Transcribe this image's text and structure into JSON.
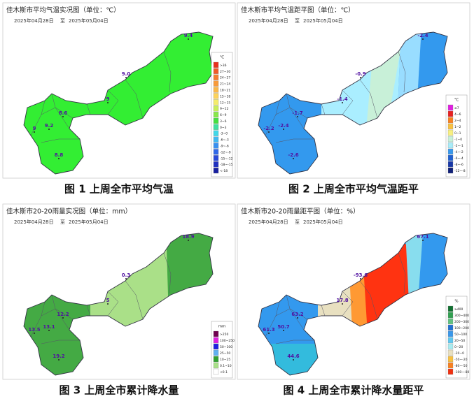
{
  "panels": [
    {
      "title": "佳木斯市平均气温实况图（单位：℃）",
      "date_from": "2025年04月28日",
      "date_sep": "至",
      "date_to": "2025年05月04日",
      "legend_title": "℃",
      "legend": [
        {
          "label": ">36",
          "color": "#e8301c"
        },
        {
          "label": "27~30",
          "color": "#f05a28"
        },
        {
          "label": "24~27",
          "color": "#f47c30"
        },
        {
          "label": "21~24",
          "color": "#f89a3a"
        },
        {
          "label": "18~21",
          "color": "#fbb848"
        },
        {
          "label": "15~18",
          "color": "#fdd35a"
        },
        {
          "label": "12~15",
          "color": "#f4ec6a"
        },
        {
          "label": "9~12",
          "color": "#c8ee5a"
        },
        {
          "label": "6~9",
          "color": "#88e84a"
        },
        {
          "label": "3~6",
          "color": "#44e040"
        },
        {
          "label": "0~3",
          "color": "#40e0a0"
        },
        {
          "label": "-3~0",
          "color": "#40d8e8"
        },
        {
          "label": "-6~-3",
          "color": "#40b8f0"
        },
        {
          "label": "-9~-6",
          "color": "#3890f0"
        },
        {
          "label": "-12~-9",
          "color": "#3068e8"
        },
        {
          "label": "-15~-12",
          "color": "#2848d8"
        },
        {
          "label": "-18~-15",
          "color": "#2030c0"
        },
        {
          "label": "<-18",
          "color": "#1820a0"
        }
      ],
      "stations": [
        "9.4",
        "9.0",
        "9",
        "8.6",
        "9.2",
        "9",
        "8.8"
      ],
      "caption": "图 1  上周全市平均气温"
    },
    {
      "title": "佳木斯市平均气温距平图（单位：℃）",
      "date_from": "2025年04月28日",
      "date_sep": "至",
      "date_to": "2025年05月04日",
      "legend_title": "℃",
      "legend": [
        {
          "label": "≥7",
          "color": "#e020e0"
        },
        {
          "label": "4~6",
          "color": "#e82020"
        },
        {
          "label": "2~4",
          "color": "#f88020"
        },
        {
          "label": "1~2",
          "color": "#f8c040"
        },
        {
          "label": "0~1",
          "color": "#f8f080"
        },
        {
          "label": "-1~0",
          "color": "#c8f0d8"
        },
        {
          "label": "-2~-1",
          "color": "#a8ecf8"
        },
        {
          "label": "-4~-2",
          "color": "#3898ec"
        },
        {
          "label": "-6~-4",
          "color": "#2060d0"
        },
        {
          "label": "-8~-6",
          "color": "#1838a8"
        },
        {
          "label": "-12~-8",
          "color": "#102078"
        }
      ],
      "stations": [
        "-2.4",
        "-0.9",
        "-1.4",
        "-1.7",
        "-2.4",
        "-2.2",
        "-2.6"
      ],
      "caption": "图 2  上周全市平均气温距平"
    },
    {
      "title": "佳木斯市20-20雨量实况图（单位：mm）",
      "date_from": "2025年04月28日",
      "date_sep": "至",
      "date_to": "2025年05月04日",
      "legend_title": "mm",
      "legend": [
        {
          "label": ">250",
          "color": "#700050"
        },
        {
          "label": "100~250",
          "color": "#e020e0"
        },
        {
          "label": "50~100",
          "color": "#2020e0"
        },
        {
          "label": "25~50",
          "color": "#60b0f0"
        },
        {
          "label": "10~25",
          "color": "#30a030"
        },
        {
          "label": "0.1~10",
          "color": "#a8e088"
        },
        {
          "label": "<0.1",
          "color": "#ffffff"
        }
      ],
      "stations": [
        "18.9",
        "0.3",
        "5",
        "12.2",
        "13.1",
        "13.5",
        "19.2"
      ],
      "caption": "图 3  上周全市累计降水量"
    },
    {
      "title": "佳木斯市20-20雨量距平图（单位：%）",
      "date_from": "2025年04月28日",
      "date_sep": "至",
      "date_to": "2025年05月04日",
      "legend_title": "%",
      "legend": [
        {
          "label": "≥400",
          "color": "#107030"
        },
        {
          "label": "300~400",
          "color": "#30a050"
        },
        {
          "label": "200~300",
          "color": "#60c080"
        },
        {
          "label": "100~200",
          "color": "#2070d0"
        },
        {
          "label": "50~100",
          "color": "#3898ec"
        },
        {
          "label": "20~50",
          "color": "#60c8f0"
        },
        {
          "label": "0~20",
          "color": "#a8ecf0"
        },
        {
          "label": "-20~0",
          "color": "#e8e0c0"
        },
        {
          "label": "-50~-20",
          "color": "#f8c040"
        },
        {
          "label": "-80~-50",
          "color": "#f88020"
        },
        {
          "label": "-100~-80",
          "color": "#f03010"
        }
      ],
      "stations": [
        "67.1",
        "-93.6",
        "17.8",
        "63.2",
        "50.7",
        "61.3",
        "44.6"
      ],
      "caption": "图 4  上周全市累计降水量距平"
    }
  ]
}
